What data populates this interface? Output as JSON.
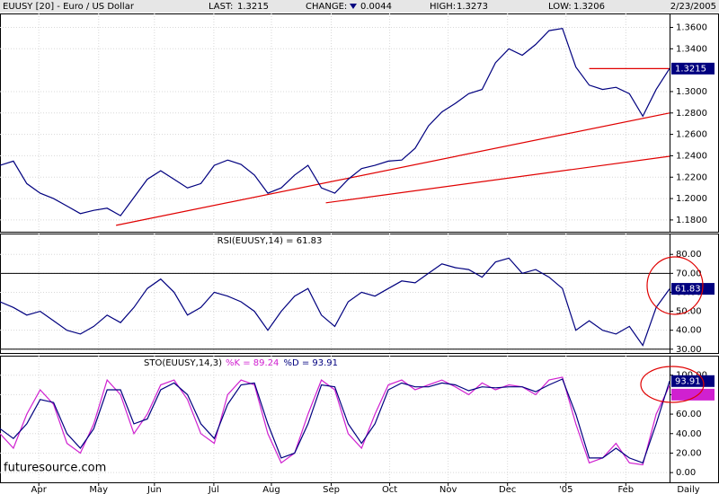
{
  "header": {
    "title": "EUUSY [20] - Euro / US Dollar",
    "last_label": "LAST:",
    "last": "1.3215",
    "change_label": "CHANGE:",
    "change": "0.0044",
    "high_label": "HIGH:",
    "high": "1.3273",
    "low_label": "LOW:",
    "low": "1.3206",
    "date": "2/23/2005",
    "watermark": "futuresource.com"
  },
  "chart_data": [
    {
      "type": "line",
      "xlim": [
        0,
        150
      ],
      "ylim": [
        1.169,
        1.373
      ],
      "yticks": [
        {
          "value": 1.18,
          "label": "1.1800"
        },
        {
          "value": 1.2,
          "label": "1.2000"
        },
        {
          "value": 1.22,
          "label": "1.2200"
        },
        {
          "value": 1.24,
          "label": "1.2400"
        },
        {
          "value": 1.26,
          "label": "1.2600"
        },
        {
          "value": 1.28,
          "label": "1.2800"
        },
        {
          "value": 1.3,
          "label": "1.3000"
        },
        {
          "value": 1.34,
          "label": "1.3400"
        },
        {
          "value": 1.36,
          "label": "1.3600"
        }
      ],
      "grid": true,
      "x": [
        0,
        3,
        6,
        9,
        12,
        15,
        18,
        21,
        24,
        27,
        30,
        33,
        36,
        39,
        42,
        45,
        48,
        51,
        54,
        57,
        60,
        63,
        66,
        69,
        72,
        75,
        78,
        81,
        84,
        87,
        90,
        93,
        96,
        99,
        102,
        105,
        108,
        111,
        114,
        117,
        120,
        123,
        126,
        129,
        132,
        135,
        138,
        141,
        144,
        147,
        150
      ],
      "series": [
        {
          "color": "#00007f",
          "values": [
            1.231,
            1.235,
            1.214,
            1.205,
            1.2,
            1.193,
            1.186,
            1.189,
            1.191,
            1.184,
            1.201,
            1.218,
            1.226,
            1.218,
            1.21,
            1.214,
            1.231,
            1.236,
            1.232,
            1.222,
            1.205,
            1.21,
            1.222,
            1.231,
            1.21,
            1.205,
            1.218,
            1.228,
            1.231,
            1.235,
            1.236,
            1.247,
            1.268,
            1.281,
            1.289,
            1.298,
            1.302,
            1.327,
            1.34,
            1.334,
            1.344,
            1.357,
            1.359,
            1.323,
            1.306,
            1.302,
            1.304,
            1.298,
            1.277,
            1.302,
            1.3215
          ]
        }
      ],
      "trendline_color": "#e00000",
      "trendlines": [
        {
          "x": [
            26,
            150
          ],
          "y": [
            1.175,
            1.28
          ]
        },
        {
          "x": [
            73,
            150
          ],
          "y": [
            1.196,
            1.2395
          ]
        },
        {
          "x": [
            132,
            150
          ],
          "y": [
            1.3215,
            1.3215
          ]
        }
      ]
    },
    {
      "type": "line",
      "title": "RSI(EUUSY,14) = 61.83",
      "xlim": [
        0,
        150
      ],
      "ylim": [
        28,
        91
      ],
      "yticks": [
        {
          "value": 30,
          "label": "30.00"
        },
        {
          "value": 40,
          "label": "40.00"
        },
        {
          "value": 50,
          "label": "50.00"
        },
        {
          "value": 60,
          "label": "60.00"
        },
        {
          "value": 70,
          "label": "70.00"
        },
        {
          "value": 80,
          "label": "80.00"
        }
      ],
      "grid": true,
      "hlines": [
        70,
        30
      ],
      "x": [
        0,
        3,
        6,
        9,
        12,
        15,
        18,
        21,
        24,
        27,
        30,
        33,
        36,
        39,
        42,
        45,
        48,
        51,
        54,
        57,
        60,
        63,
        66,
        69,
        72,
        75,
        78,
        81,
        84,
        87,
        90,
        93,
        96,
        99,
        102,
        105,
        108,
        111,
        114,
        117,
        120,
        123,
        126,
        129,
        132,
        135,
        138,
        141,
        144,
        147,
        150
      ],
      "series": [
        {
          "color": "#00007f",
          "values": [
            55,
            52,
            48,
            50,
            45,
            40,
            38,
            42,
            48,
            44,
            52,
            62,
            67,
            60,
            48,
            52,
            60,
            58,
            55,
            50,
            40,
            50,
            58,
            62,
            48,
            42,
            55,
            60,
            58,
            62,
            66,
            65,
            70,
            75,
            73,
            72,
            68,
            76,
            78,
            70,
            72,
            68,
            62,
            40,
            45,
            40,
            38,
            42,
            32,
            52,
            61.83
          ]
        }
      ]
    },
    {
      "type": "line",
      "title": "STO(EUUSY,14,3)",
      "xlim": [
        0,
        150
      ],
      "ylim": [
        -10,
        120
      ],
      "yticks": [
        {
          "value": 0,
          "label": "0.00"
        },
        {
          "value": 20,
          "label": "20.00"
        },
        {
          "value": 40,
          "label": "40.00"
        },
        {
          "value": 60,
          "label": "60.00"
        },
        {
          "value": 80,
          "label": "80.00"
        },
        {
          "value": 100,
          "label": "100.00"
        }
      ],
      "grid": true,
      "xticks": [
        {
          "value": 8.7,
          "label": "Apr"
        },
        {
          "value": 22.1,
          "label": "May"
        },
        {
          "value": 34.6,
          "label": "Jun"
        },
        {
          "value": 47.9,
          "label": "Jul"
        },
        {
          "value": 60.8,
          "label": "Aug"
        },
        {
          "value": 74.2,
          "label": "Sep"
        },
        {
          "value": 87.3,
          "label": "Oct"
        },
        {
          "value": 100.4,
          "label": "Nov"
        },
        {
          "value": 113.7,
          "label": "Dec"
        },
        {
          "value": 126.8,
          "label": "'05"
        },
        {
          "value": 140.2,
          "label": "Feb"
        }
      ],
      "x_label": "Daily",
      "x": [
        0,
        3,
        6,
        9,
        12,
        15,
        18,
        21,
        24,
        27,
        30,
        33,
        36,
        39,
        42,
        45,
        48,
        51,
        54,
        57,
        60,
        63,
        66,
        69,
        72,
        75,
        78,
        81,
        84,
        87,
        90,
        93,
        96,
        99,
        102,
        105,
        108,
        111,
        114,
        117,
        120,
        123,
        126,
        129,
        132,
        135,
        138,
        141,
        144,
        147,
        150
      ],
      "series": [
        {
          "name": "%K = 89.24",
          "color": "#d020d0",
          "values": [
            40,
            25,
            60,
            85,
            70,
            30,
            20,
            50,
            95,
            80,
            40,
            60,
            90,
            95,
            75,
            40,
            30,
            80,
            95,
            90,
            40,
            10,
            20,
            60,
            95,
            85,
            40,
            25,
            60,
            90,
            95,
            85,
            90,
            95,
            88,
            80,
            92,
            85,
            90,
            88,
            80,
            95,
            98,
            50,
            10,
            15,
            30,
            10,
            8,
            60,
            89.24
          ]
        },
        {
          "name": "%D = 93.91",
          "color": "#00007f",
          "values": [
            45,
            35,
            50,
            75,
            72,
            40,
            25,
            45,
            85,
            85,
            50,
            55,
            85,
            92,
            80,
            50,
            35,
            70,
            90,
            92,
            50,
            15,
            20,
            50,
            90,
            88,
            50,
            30,
            50,
            85,
            92,
            88,
            88,
            92,
            90,
            84,
            88,
            87,
            88,
            88,
            83,
            90,
            96,
            60,
            15,
            15,
            25,
            15,
            10,
            50,
            93.91
          ]
        }
      ]
    }
  ]
}
